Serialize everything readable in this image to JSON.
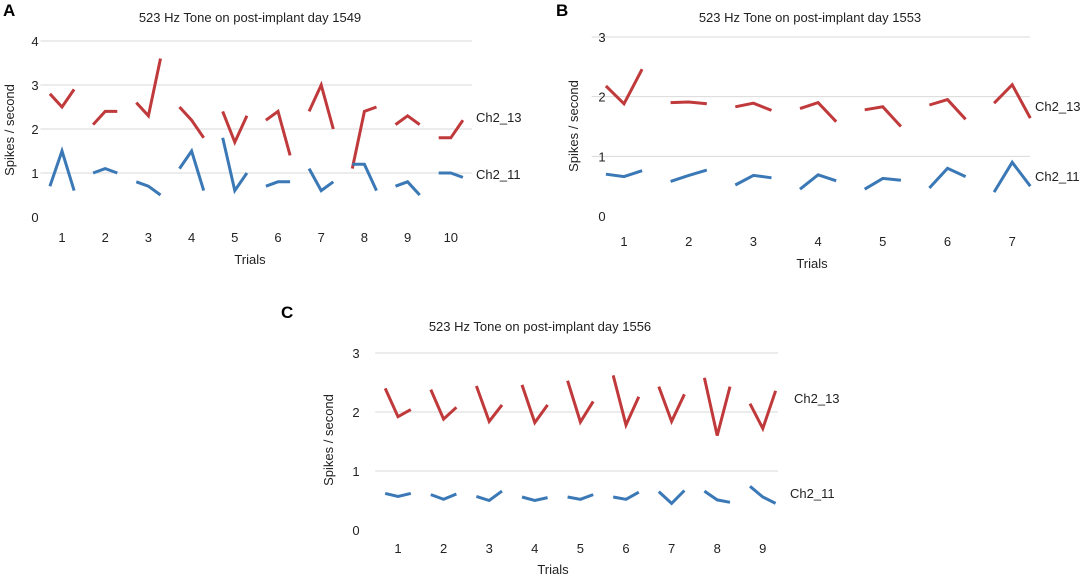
{
  "colors": {
    "ch2_13": "#c0393b",
    "ch2_11": "#3b78b6",
    "grid": "#d9d9d9"
  },
  "chart_data": [
    {
      "id": "A",
      "panel_label": "A",
      "type": "line",
      "title": "523 Hz Tone on post-implant day 1549",
      "xlabel": "Trials",
      "ylabel": "Spikes / second",
      "ylim": [
        0,
        4
      ],
      "yticks": [
        "0",
        "1",
        "2",
        "3",
        "4"
      ],
      "categories": [
        "1",
        "2",
        "3",
        "4",
        "5",
        "6",
        "7",
        "8",
        "9",
        "10"
      ],
      "grid": true,
      "series": [
        {
          "name": "Ch2_13",
          "color_key": "ch2_13",
          "values": [
            [
              2.8,
              2.5,
              2.9
            ],
            [
              2.1,
              2.4,
              2.4
            ],
            [
              2.6,
              2.3,
              3.6
            ],
            [
              2.5,
              2.2,
              1.8
            ],
            [
              2.4,
              1.7,
              2.3
            ],
            [
              2.2,
              2.4,
              1.4
            ],
            [
              2.4,
              3.0,
              2.0
            ],
            [
              1.1,
              2.4,
              2.5
            ],
            [
              2.1,
              2.3,
              2.1
            ],
            [
              1.8,
              1.8,
              2.2
            ]
          ]
        },
        {
          "name": "Ch2_11",
          "color_key": "ch2_11",
          "values": [
            [
              0.7,
              1.5,
              0.6
            ],
            [
              1.0,
              1.1,
              1.0
            ],
            [
              0.8,
              0.7,
              0.5
            ],
            [
              1.1,
              1.5,
              0.6
            ],
            [
              1.8,
              0.6,
              1.0
            ],
            [
              0.7,
              0.8,
              0.8
            ],
            [
              1.1,
              0.6,
              0.8
            ],
            [
              1.2,
              1.2,
              0.6
            ],
            [
              0.7,
              0.8,
              0.5
            ],
            [
              1.0,
              1.0,
              0.9
            ]
          ]
        }
      ]
    },
    {
      "id": "B",
      "panel_label": "B",
      "type": "line",
      "title": "523 Hz Tone on post-implant day 1553",
      "xlabel": "Trials",
      "ylabel": "Spikes / second",
      "ylim": [
        0,
        3
      ],
      "yticks": [
        "0",
        "1",
        "2",
        "3"
      ],
      "categories": [
        "1",
        "2",
        "3",
        "4",
        "5",
        "6",
        "7"
      ],
      "grid": true,
      "series": [
        {
          "name": "Ch2_13",
          "color_key": "ch2_13",
          "values": [
            [
              2.18,
              1.88,
              2.46
            ],
            [
              1.9,
              1.91,
              1.88
            ],
            [
              1.83,
              1.89,
              1.77
            ],
            [
              1.8,
              1.9,
              1.58
            ],
            [
              1.78,
              1.83,
              1.5
            ],
            [
              1.86,
              1.95,
              1.62
            ],
            [
              1.89,
              2.2,
              1.64
            ]
          ]
        },
        {
          "name": "Ch2_11",
          "color_key": "ch2_11",
          "values": [
            [
              0.7,
              0.66,
              0.76
            ],
            [
              0.58,
              0.68,
              0.77
            ],
            [
              0.52,
              0.68,
              0.64
            ],
            [
              0.45,
              0.69,
              0.59
            ],
            [
              0.45,
              0.63,
              0.6
            ],
            [
              0.47,
              0.8,
              0.66
            ],
            [
              0.4,
              0.9,
              0.5
            ]
          ]
        }
      ]
    },
    {
      "id": "C",
      "panel_label": "C",
      "type": "line",
      "title": "523 Hz Tone on post-implant day 1556",
      "xlabel": "Trials",
      "ylabel": "Spikes / second",
      "ylim": [
        0,
        3
      ],
      "yticks": [
        "0",
        "1",
        "2",
        "3"
      ],
      "categories": [
        "1",
        "2",
        "3",
        "4",
        "5",
        "6",
        "7",
        "8",
        "9"
      ],
      "grid": true,
      "series": [
        {
          "name": "Ch2_13",
          "color_key": "ch2_13",
          "values": [
            [
              2.4,
              1.92,
              2.04
            ],
            [
              2.38,
              1.88,
              2.08
            ],
            [
              2.44,
              1.84,
              2.12
            ],
            [
              2.46,
              1.82,
              2.12
            ],
            [
              2.53,
              1.83,
              2.18
            ],
            [
              2.62,
              1.78,
              2.26
            ],
            [
              2.43,
              1.84,
              2.3
            ],
            [
              2.58,
              1.6,
              2.43
            ],
            [
              2.14,
              1.72,
              2.36
            ]
          ]
        },
        {
          "name": "Ch2_11",
          "color_key": "ch2_11",
          "values": [
            [
              0.62,
              0.57,
              0.62
            ],
            [
              0.6,
              0.52,
              0.61
            ],
            [
              0.57,
              0.5,
              0.66
            ],
            [
              0.56,
              0.5,
              0.55
            ],
            [
              0.56,
              0.52,
              0.6
            ],
            [
              0.56,
              0.52,
              0.64
            ],
            [
              0.65,
              0.45,
              0.67
            ],
            [
              0.66,
              0.51,
              0.47
            ],
            [
              0.74,
              0.56,
              0.45
            ]
          ]
        }
      ]
    }
  ]
}
